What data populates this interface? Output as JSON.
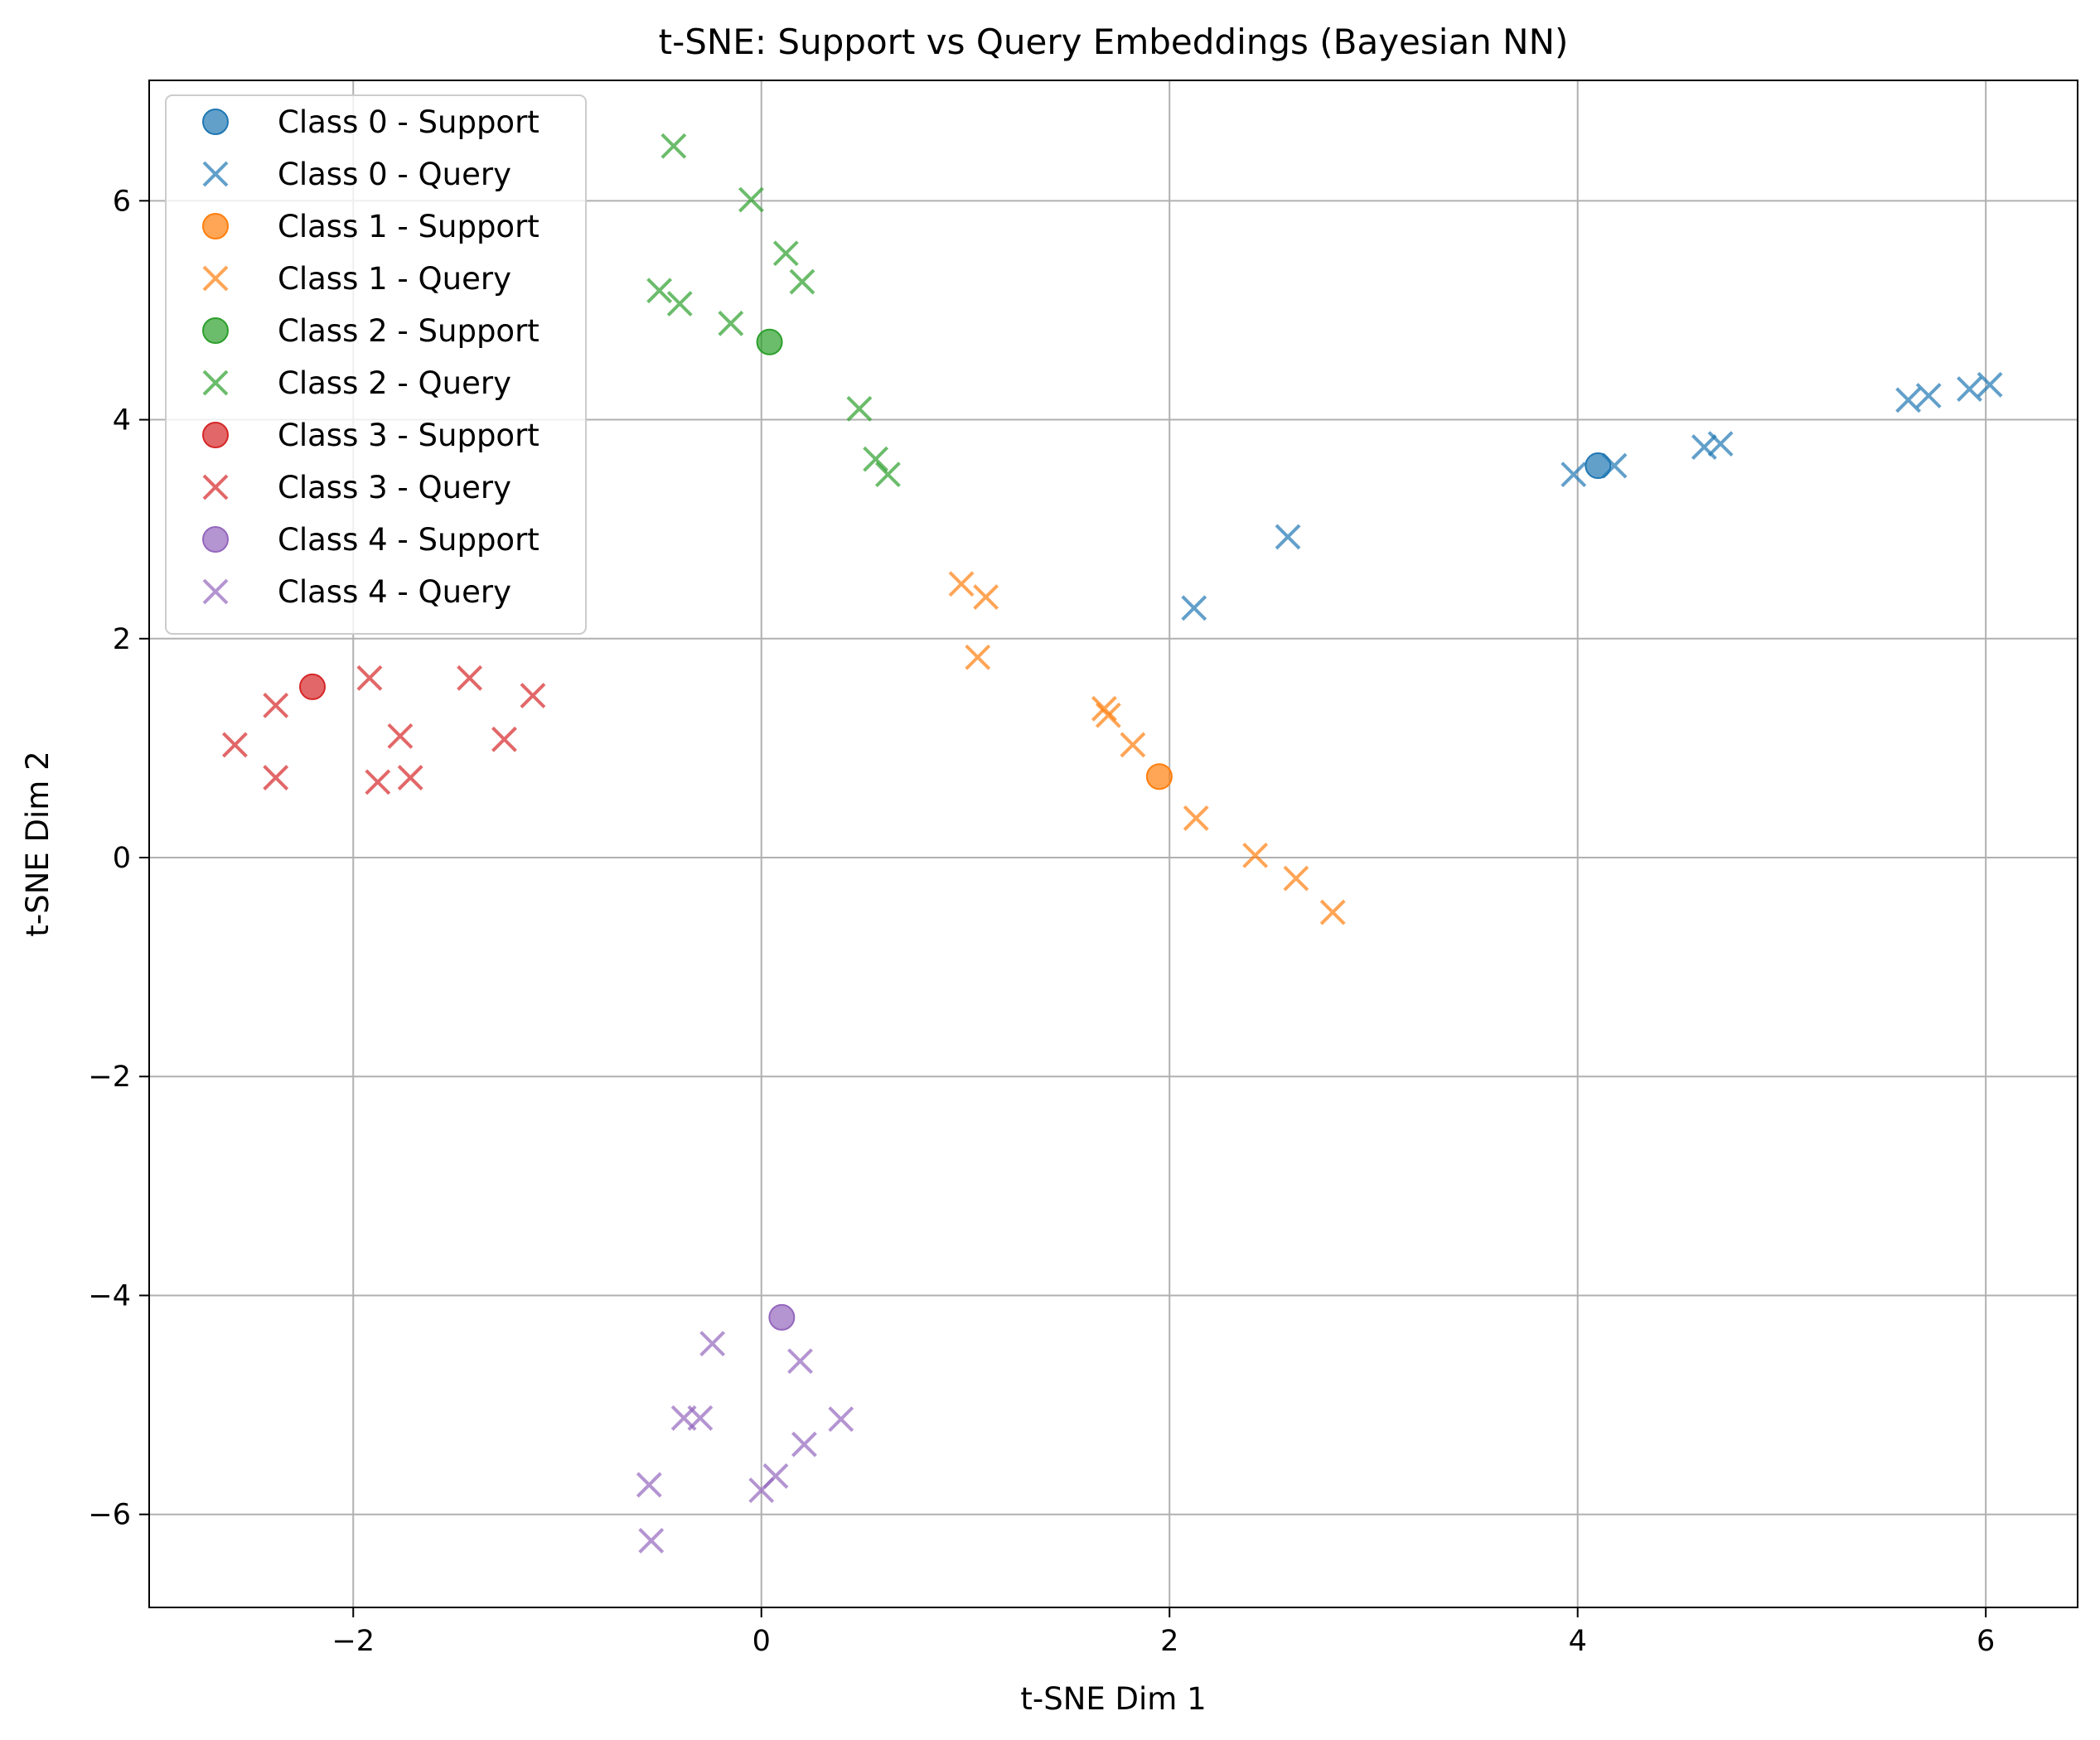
{
  "chart_data": {
    "type": "scatter",
    "title": "t-SNE: Support vs Query Embeddings (Bayesian NN)",
    "xlabel": "t-SNE Dim 1",
    "ylabel": "t-SNE Dim 2",
    "xlim": [
      -3.0,
      6.45
    ],
    "ylim": [
      -6.85,
      7.1
    ],
    "xticks": [
      -2,
      0,
      2,
      4,
      6
    ],
    "yticks": [
      -6,
      -4,
      -2,
      0,
      2,
      4,
      6
    ],
    "grid": true,
    "legend_position": "upper-left",
    "series": [
      {
        "name": "Class 0 - Support",
        "marker": "circle",
        "color": "#1f77b4",
        "points": [
          [
            4.1,
            3.58
          ]
        ]
      },
      {
        "name": "Class 0 - Query",
        "marker": "x",
        "color": "#1f77b4",
        "points": [
          [
            2.12,
            2.28
          ],
          [
            2.58,
            2.93
          ],
          [
            3.98,
            3.5
          ],
          [
            4.18,
            3.58
          ],
          [
            4.62,
            3.75
          ],
          [
            4.7,
            3.78
          ],
          [
            5.62,
            4.18
          ],
          [
            5.72,
            4.22
          ],
          [
            5.92,
            4.28
          ],
          [
            6.02,
            4.32
          ]
        ]
      },
      {
        "name": "Class 1 - Support",
        "marker": "circle",
        "color": "#ff7f0e",
        "points": [
          [
            1.95,
            0.74
          ]
        ]
      },
      {
        "name": "Class 1 - Query",
        "marker": "x",
        "color": "#ff7f0e",
        "points": [
          [
            0.98,
            2.5
          ],
          [
            1.1,
            2.38
          ],
          [
            1.06,
            1.83
          ],
          [
            1.68,
            1.36
          ],
          [
            1.7,
            1.3
          ],
          [
            1.82,
            1.03
          ],
          [
            2.13,
            0.36
          ],
          [
            2.42,
            0.02
          ],
          [
            2.62,
            -0.19
          ],
          [
            2.8,
            -0.5
          ]
        ]
      },
      {
        "name": "Class 2 - Support",
        "marker": "circle",
        "color": "#2ca02c",
        "points": [
          [
            0.04,
            4.71
          ]
        ]
      },
      {
        "name": "Class 2 - Query",
        "marker": "x",
        "color": "#2ca02c",
        "points": [
          [
            -0.43,
            6.5
          ],
          [
            -0.05,
            6.01
          ],
          [
            0.12,
            5.52
          ],
          [
            0.2,
            5.26
          ],
          [
            -0.5,
            5.18
          ],
          [
            -0.4,
            5.06
          ],
          [
            -0.15,
            4.88
          ],
          [
            0.48,
            4.1
          ],
          [
            0.56,
            3.64
          ],
          [
            0.62,
            3.5
          ]
        ]
      },
      {
        "name": "Class 3 - Support",
        "marker": "circle",
        "color": "#d62728",
        "points": [
          [
            -2.2,
            1.56
          ]
        ]
      },
      {
        "name": "Class 3 - Query",
        "marker": "x",
        "color": "#d62728",
        "points": [
          [
            -1.92,
            1.64
          ],
          [
            -1.43,
            1.64
          ],
          [
            -1.12,
            1.48
          ],
          [
            -2.38,
            1.39
          ],
          [
            -1.77,
            1.11
          ],
          [
            -1.26,
            1.08
          ],
          [
            -2.58,
            1.03
          ],
          [
            -2.38,
            0.73
          ],
          [
            -1.88,
            0.69
          ],
          [
            -1.72,
            0.73
          ]
        ]
      },
      {
        "name": "Class 4 - Support",
        "marker": "circle",
        "color": "#9467bd",
        "points": [
          [
            0.1,
            -4.2
          ]
        ]
      },
      {
        "name": "Class 4 - Query",
        "marker": "x",
        "color": "#9467bd",
        "points": [
          [
            -0.24,
            -4.44
          ],
          [
            0.19,
            -4.6
          ],
          [
            -0.38,
            -5.12
          ],
          [
            -0.3,
            -5.12
          ],
          [
            0.39,
            -5.13
          ],
          [
            0.21,
            -5.36
          ],
          [
            -0.55,
            -5.73
          ],
          [
            0.07,
            -5.65
          ],
          [
            0.0,
            -5.78
          ],
          [
            -0.54,
            -6.24
          ]
        ]
      }
    ]
  }
}
